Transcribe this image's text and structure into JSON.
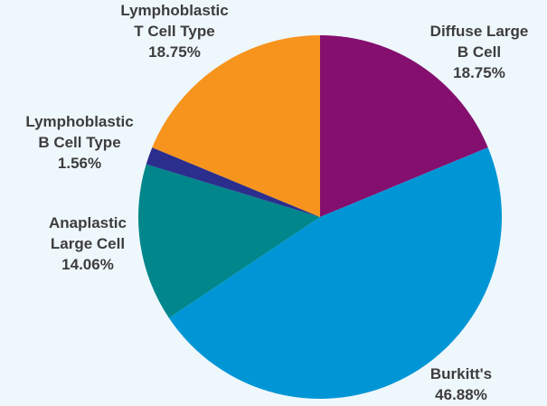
{
  "chart_data": {
    "type": "pie",
    "categories": [
      "Diffuse Large B Cell",
      "Burkitt's",
      "Anaplastic Large Cell",
      "Lymphoblastic B Cell Type",
      "Lymphoblastic T Cell Type"
    ],
    "values": [
      18.75,
      46.88,
      14.06,
      1.56,
      18.75
    ],
    "value_labels": [
      "18.75%",
      "46.88%",
      "14.06%",
      "1.56%",
      "18.75%"
    ],
    "colors": [
      "#850f6e",
      "#0096d6",
      "#00868b",
      "#2b2e8c",
      "#f7941d"
    ]
  }
}
